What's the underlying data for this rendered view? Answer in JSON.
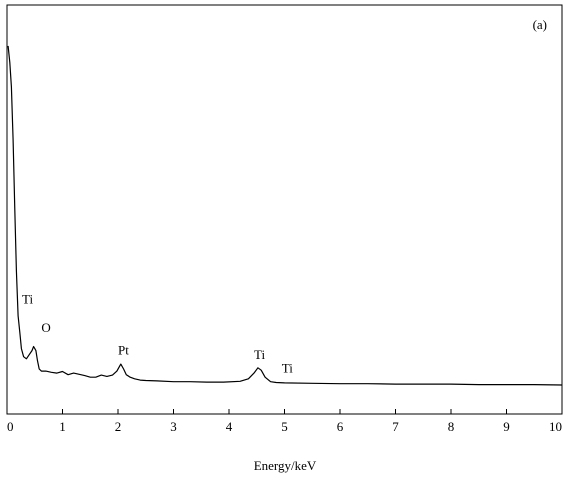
{
  "chart_data": {
    "type": "line",
    "title": "",
    "panel_label": "(a)",
    "xlabel": "Energy/keV",
    "ylabel": "",
    "xlim": [
      0,
      10
    ],
    "ylim": [
      0,
      100
    ],
    "x_ticks": [
      0,
      1,
      2,
      3,
      4,
      5,
      6,
      7,
      8,
      9,
      10
    ],
    "x_tick_labels": [
      "0",
      "1",
      "2",
      "3",
      "4",
      "5",
      "6",
      "7",
      "8",
      "9",
      "10"
    ],
    "y_ticks_shown": false,
    "grid": false,
    "legend": "none",
    "series": [
      {
        "color": "#000000",
        "x": [
          0.02,
          0.05,
          0.08,
          0.11,
          0.14,
          0.17,
          0.2,
          0.23,
          0.26,
          0.3,
          0.35,
          0.4,
          0.45,
          0.48,
          0.52,
          0.55,
          0.58,
          0.62,
          0.7,
          0.8,
          0.9,
          1.0,
          1.1,
          1.2,
          1.3,
          1.4,
          1.5,
          1.6,
          1.7,
          1.8,
          1.9,
          1.98,
          2.05,
          2.1,
          2.15,
          2.22,
          2.3,
          2.4,
          2.5,
          2.7,
          3.0,
          3.3,
          3.6,
          3.9,
          4.2,
          4.35,
          4.45,
          4.52,
          4.58,
          4.65,
          4.75,
          4.85,
          5.0,
          5.5,
          6.0,
          6.5,
          7.0,
          7.5,
          8.0,
          8.5,
          9.0,
          9.5,
          10.0
        ],
        "y": [
          90,
          86,
          80,
          67,
          50,
          35,
          24,
          20,
          16,
          14,
          13.5,
          14.5,
          15.5,
          16.5,
          15.5,
          13,
          11,
          10.5,
          10.5,
          10.2,
          10,
          10.4,
          9.6,
          10,
          9.7,
          9.4,
          9,
          9,
          9.5,
          9.2,
          9.5,
          10.5,
          12.2,
          11,
          9.6,
          9,
          8.6,
          8.3,
          8.2,
          8.1,
          7.9,
          7.9,
          7.8,
          7.8,
          8.0,
          8.6,
          10.0,
          11.3,
          10.7,
          9.0,
          7.9,
          7.7,
          7.6,
          7.5,
          7.4,
          7.4,
          7.3,
          7.3,
          7.3,
          7.2,
          7.2,
          7.2,
          7.1
        ]
      }
    ],
    "annotations": [
      {
        "text": "Ti",
        "x": 0.27,
        "y": 27
      },
      {
        "text": "O",
        "x": 0.62,
        "y": 20
      },
      {
        "text": "Pt",
        "x": 2.0,
        "y": 14.5
      },
      {
        "text": "Ti",
        "x": 4.45,
        "y": 13.5
      },
      {
        "text": "Ti",
        "x": 4.95,
        "y": 10.2
      }
    ]
  }
}
